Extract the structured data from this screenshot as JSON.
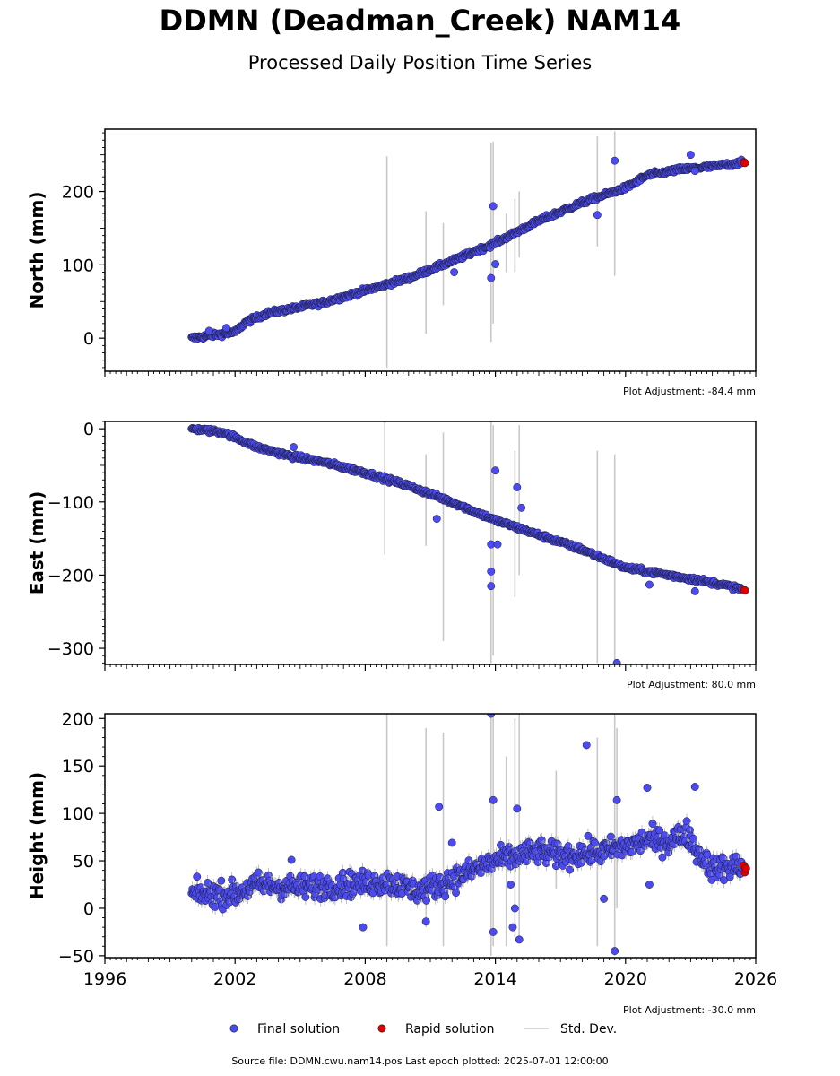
{
  "title": "DDMN (Deadman_Creek) NAM14",
  "subtitle": "Processed Daily Position Time Series",
  "source_line": "Source file: DDMN.cwu.nam14.pos  Last epoch plotted: 2025-07-01 12:00:00",
  "legend": {
    "final": "Final solution",
    "rapid": "Rapid solution",
    "std": "Std. Dev."
  },
  "colors": {
    "final": "#4b4bf0",
    "rapid": "#e00000",
    "std": "#c8c8c8",
    "marker_edge": "#1a1a2e"
  },
  "chart_data": [
    {
      "type": "scatter",
      "panel": "north",
      "ylabel": "North (mm)",
      "adjustment": "Plot Adjustment: -84.4 mm",
      "xlim": [
        1996,
        2026
      ],
      "ylim": [
        -45,
        285
      ],
      "yticks": [
        0,
        100,
        200
      ],
      "ytick_labels": [
        "0",
        "100",
        "200"
      ],
      "trend": [
        [
          2000.0,
          0
        ],
        [
          2002.0,
          8
        ],
        [
          2002.5,
          22
        ],
        [
          2003.5,
          34
        ],
        [
          2006,
          48
        ],
        [
          2008,
          65
        ],
        [
          2010,
          82
        ],
        [
          2012,
          105
        ],
        [
          2014,
          130
        ],
        [
          2016,
          160
        ],
        [
          2018,
          185
        ],
        [
          2020,
          205
        ],
        [
          2021,
          222
        ],
        [
          2022.5,
          230
        ],
        [
          2024,
          234
        ],
        [
          2025.5,
          240
        ]
      ],
      "noise": 3,
      "outliers": [
        [
          2000.8,
          10
        ],
        [
          2001.6,
          14
        ],
        [
          2012.1,
          90
        ],
        [
          2013.9,
          180
        ],
        [
          2013.8,
          82
        ],
        [
          2014.0,
          101
        ],
        [
          2018.7,
          168
        ],
        [
          2019.5,
          242
        ],
        [
          2023.0,
          250
        ],
        [
          2023.2,
          228
        ]
      ],
      "error_bars": [
        [
          2009.0,
          -40,
          248
        ],
        [
          2010.8,
          6,
          173
        ],
        [
          2011.6,
          45,
          157
        ],
        [
          2013.8,
          -5,
          266
        ],
        [
          2013.9,
          20,
          268
        ],
        [
          2014.5,
          90,
          170
        ],
        [
          2014.9,
          90,
          190
        ],
        [
          2015.1,
          110,
          200
        ],
        [
          2018.7,
          125,
          275
        ],
        [
          2019.5,
          85,
          282
        ]
      ],
      "rapid": [
        [
          2025.45,
          240
        ],
        [
          2025.5,
          239
        ]
      ]
    },
    {
      "type": "scatter",
      "panel": "east",
      "ylabel": "East (mm)",
      "adjustment": "Plot Adjustment: 80.0 mm",
      "xlim": [
        1996,
        2026
      ],
      "ylim": [
        -322,
        10
      ],
      "yticks": [
        0,
        -100,
        -200,
        -300
      ],
      "ytick_labels": [
        "0",
        "−100",
        "−200",
        "−300"
      ],
      "trend": [
        [
          2000.0,
          0
        ],
        [
          2001.5,
          -5
        ],
        [
          2003,
          -25
        ],
        [
          2004.5,
          -37
        ],
        [
          2006,
          -45
        ],
        [
          2008,
          -60
        ],
        [
          2010,
          -78
        ],
        [
          2012,
          -100
        ],
        [
          2014,
          -125
        ],
        [
          2016,
          -145
        ],
        [
          2018,
          -165
        ],
        [
          2020,
          -190
        ],
        [
          2022,
          -200
        ],
        [
          2024,
          -210
        ],
        [
          2025.5,
          -220
        ]
      ],
      "noise": 3,
      "outliers": [
        [
          2004.7,
          -25
        ],
        [
          2011.3,
          -123
        ],
        [
          2013.8,
          -158
        ],
        [
          2013.8,
          -195
        ],
        [
          2013.8,
          -215
        ],
        [
          2014.0,
          -57
        ],
        [
          2014.1,
          -158
        ],
        [
          2015.0,
          -80
        ],
        [
          2015.2,
          -108
        ],
        [
          2019.6,
          -320
        ],
        [
          2021.1,
          -213
        ],
        [
          2023.2,
          -222
        ]
      ],
      "error_bars": [
        [
          2008.9,
          -172,
          10
        ],
        [
          2010.8,
          -160,
          -35
        ],
        [
          2011.6,
          -290,
          -5
        ],
        [
          2013.8,
          -320,
          10
        ],
        [
          2013.9,
          -310,
          5
        ],
        [
          2014.9,
          -230,
          -30
        ],
        [
          2015.1,
          -200,
          5
        ],
        [
          2018.7,
          -320,
          -30
        ],
        [
          2019.5,
          -320,
          -35
        ]
      ],
      "rapid": [
        [
          2025.45,
          -220
        ],
        [
          2025.5,
          -221
        ]
      ]
    },
    {
      "type": "scatter",
      "panel": "height",
      "ylabel": "Height (mm)",
      "adjustment": "Plot Adjustment: -30.0 mm",
      "xlim": [
        1996,
        2026
      ],
      "ylim": [
        -52,
        205
      ],
      "yticks": [
        -50,
        0,
        50,
        100,
        150,
        200
      ],
      "ytick_labels": [
        "−50",
        "0",
        "50",
        "100",
        "150",
        "200"
      ],
      "xticks": [
        1996,
        2002,
        2008,
        2014,
        2020,
        2026
      ],
      "xtick_labels": [
        "1996",
        "2002",
        "2008",
        "2014",
        "2020",
        "2026"
      ],
      "trend": [
        [
          2000.0,
          15
        ],
        [
          2002,
          15
        ],
        [
          2003,
          25
        ],
        [
          2005,
          22
        ],
        [
          2007,
          25
        ],
        [
          2009,
          28
        ],
        [
          2010.5,
          18
        ],
        [
          2012,
          30
        ],
        [
          2013,
          40
        ],
        [
          2014,
          50
        ],
        [
          2015,
          55
        ],
        [
          2016,
          60
        ],
        [
          2017,
          55
        ],
        [
          2018,
          58
        ],
        [
          2019,
          60
        ],
        [
          2020,
          65
        ],
        [
          2021,
          72
        ],
        [
          2022,
          70
        ],
        [
          2022.8,
          80
        ],
        [
          2023.3,
          60
        ],
        [
          2024,
          42
        ],
        [
          2025.5,
          45
        ]
      ],
      "noise": 12,
      "outliers": [
        [
          2004.6,
          51
        ],
        [
          2007.9,
          -20
        ],
        [
          2010.8,
          -14
        ],
        [
          2011.4,
          107
        ],
        [
          2012.0,
          69
        ],
        [
          2013.8,
          205
        ],
        [
          2013.9,
          114
        ],
        [
          2013.9,
          -25
        ],
        [
          2014.7,
          25
        ],
        [
          2014.8,
          -20
        ],
        [
          2014.9,
          0
        ],
        [
          2015.0,
          105
        ],
        [
          2015.1,
          -33
        ],
        [
          2018.2,
          172
        ],
        [
          2019.0,
          10
        ],
        [
          2019.5,
          -45
        ],
        [
          2019.6,
          114
        ],
        [
          2021.1,
          25
        ],
        [
          2021.0,
          127
        ],
        [
          2023.2,
          128
        ]
      ],
      "error_bars": [
        [
          2009.0,
          -40,
          205
        ],
        [
          2010.8,
          -20,
          190
        ],
        [
          2011.6,
          -40,
          185
        ],
        [
          2013.8,
          -50,
          205
        ],
        [
          2013.9,
          -40,
          205
        ],
        [
          2014.5,
          -40,
          160
        ],
        [
          2014.9,
          -30,
          200
        ],
        [
          2015.1,
          -30,
          205
        ],
        [
          2016.8,
          20,
          145
        ],
        [
          2018.7,
          -40,
          180
        ],
        [
          2019.5,
          -50,
          205
        ],
        [
          2019.6,
          0,
          190
        ]
      ],
      "rapid": [
        [
          2025.45,
          45
        ],
        [
          2025.5,
          38
        ],
        [
          2025.55,
          42
        ]
      ]
    }
  ]
}
